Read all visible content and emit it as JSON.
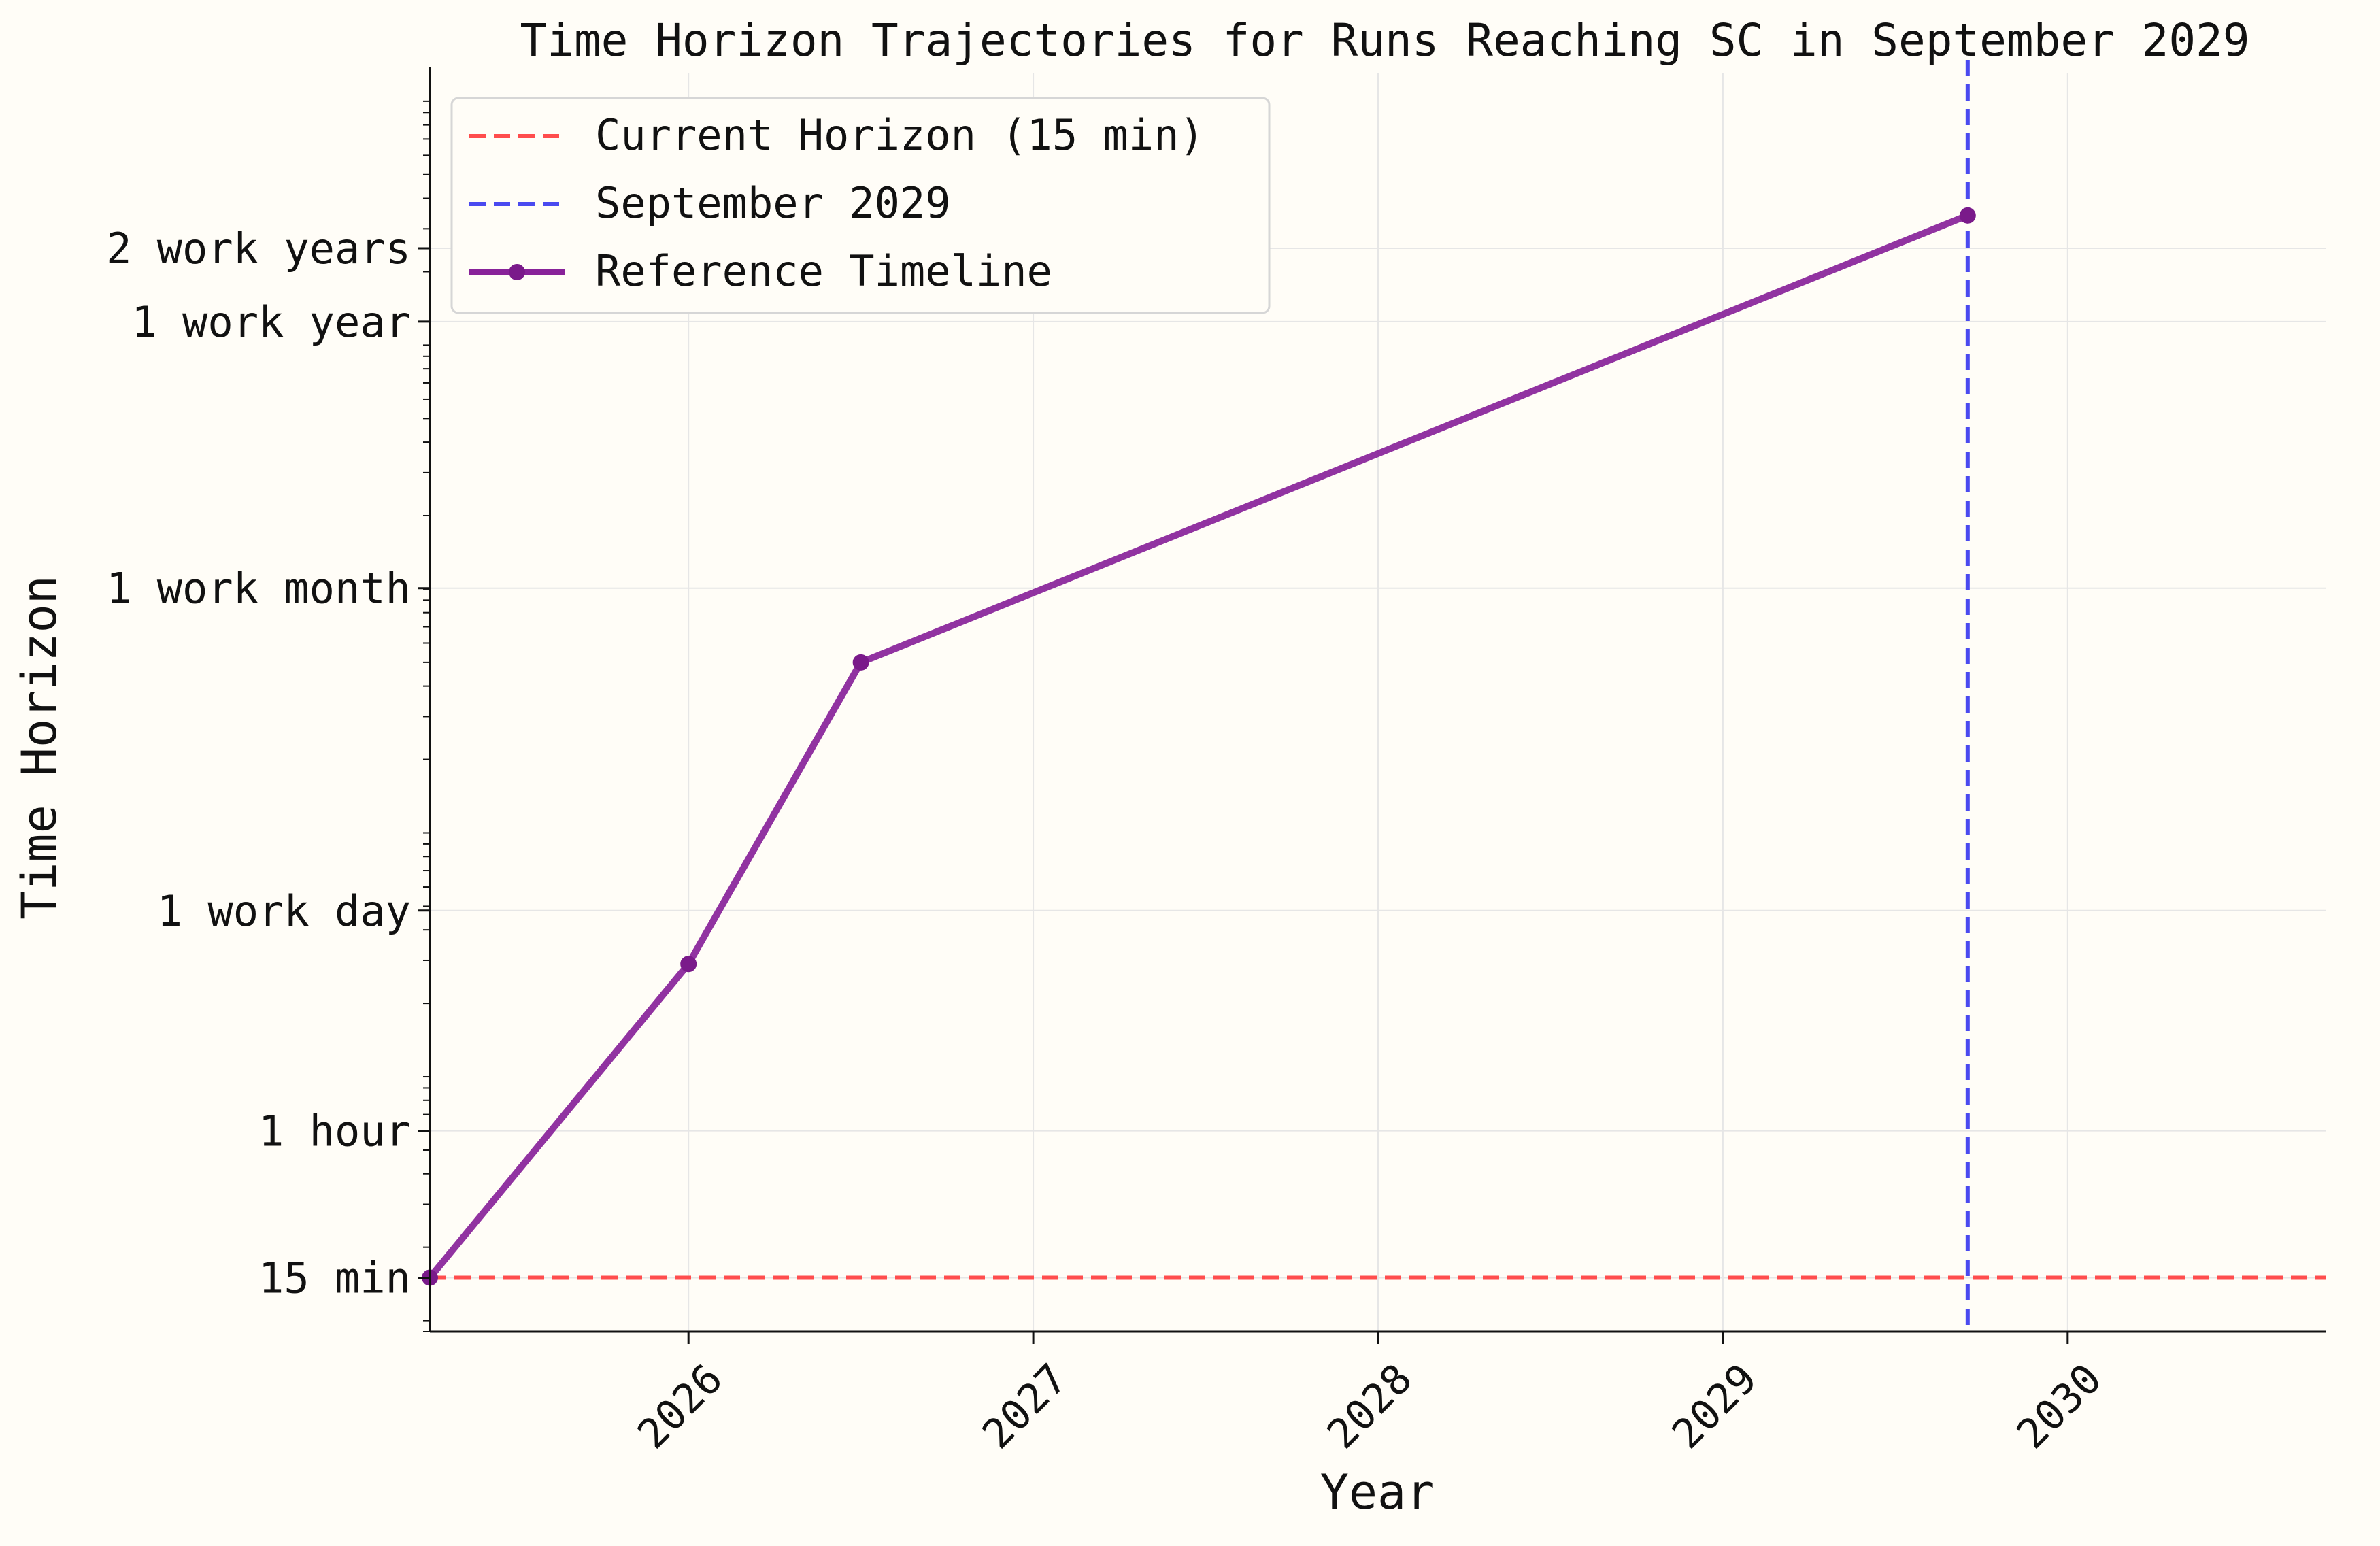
{
  "chart_data": {
    "type": "line",
    "title": "Time Horizon Trajectories for Runs Reaching SC in September 2029",
    "xlabel": "Year",
    "ylabel": "Time Horizon",
    "x_scale": "linear (date, decimal years)",
    "y_scale": "log (minutes)",
    "xlim": [
      2025.25,
      2030.75
    ],
    "ylim_minutes": [
      9,
      1300000
    ],
    "grid": true,
    "legend_position": "upper-left",
    "x_ticks": [
      {
        "value": 2026,
        "label": "2026"
      },
      {
        "value": 2027,
        "label": "2027"
      },
      {
        "value": 2028,
        "label": "2028"
      },
      {
        "value": 2029,
        "label": "2029"
      },
      {
        "value": 2030,
        "label": "2030"
      }
    ],
    "y_ticks": [
      {
        "minutes": 15,
        "label": "15 min"
      },
      {
        "minutes": 60,
        "label": "1 hour"
      },
      {
        "minutes": 480,
        "label": "1 work day"
      },
      {
        "minutes": 10080,
        "label": "1 work month"
      },
      {
        "minutes": 124800,
        "label": "1 work year"
      },
      {
        "minutes": 249600,
        "label": "2 work years"
      }
    ],
    "series": [
      {
        "name": "Reference Timeline",
        "color": "#882299",
        "style": "solid-with-markers",
        "x": [
          2025.25,
          2026.0,
          2026.5,
          2029.71
        ],
        "y_minutes": [
          15,
          290,
          5000,
          340000
        ]
      }
    ],
    "reference_lines": [
      {
        "name": "Current Horizon (15 min)",
        "orientation": "horizontal",
        "value_minutes": 15,
        "color": "#ff4d4d",
        "style": "dashed"
      },
      {
        "name": "September 2029",
        "orientation": "vertical",
        "value_year": 2029.71,
        "color": "#4a4af0",
        "style": "dashed"
      }
    ],
    "legend": [
      {
        "label": "Current Horizon (15 min)",
        "color": "#ff4d4d",
        "style": "dashed"
      },
      {
        "label": "September 2029",
        "color": "#4a4af0",
        "style": "dashed"
      },
      {
        "label": "Reference Timeline",
        "color": "#882299",
        "style": "solid-with-markers"
      }
    ]
  }
}
